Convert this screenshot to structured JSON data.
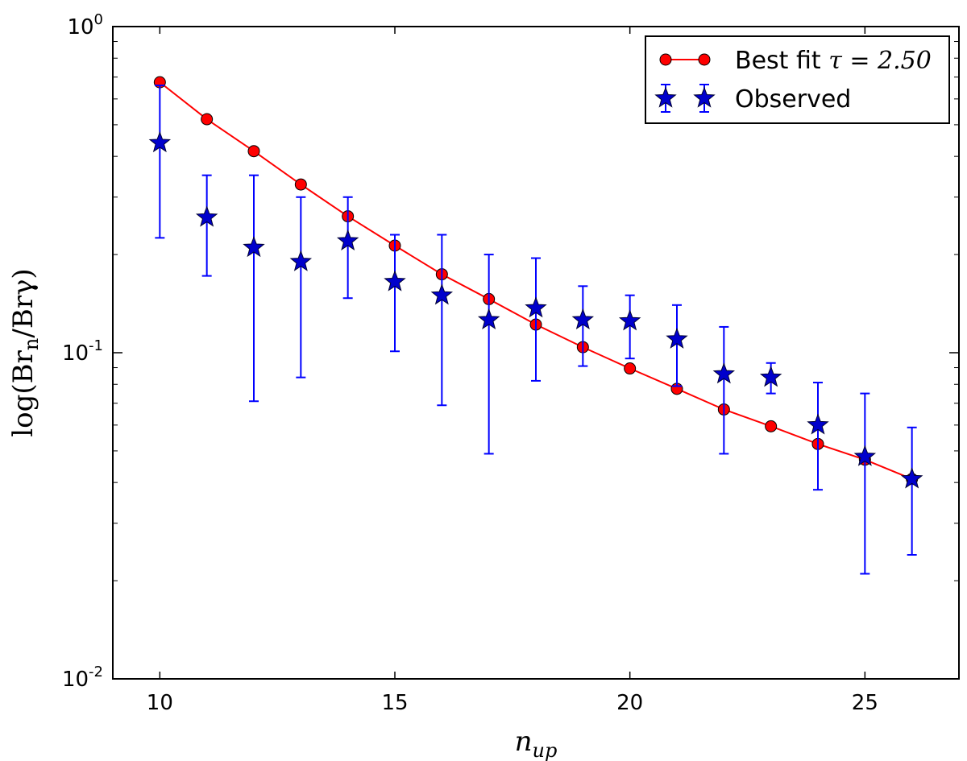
{
  "chart_data": {
    "type": "scatter",
    "xlabel": "n_up",
    "ylabel": "log(Br_n/Brγ)",
    "xlim": [
      9,
      27
    ],
    "ylim": [
      0.01,
      1
    ],
    "yscale": "log",
    "x_ticks": [
      10,
      15,
      20,
      25
    ],
    "y_ticks": [
      {
        "value": 1,
        "base": "10",
        "exp": "0"
      },
      {
        "value": 0.1,
        "base": "10",
        "exp": "-1"
      },
      {
        "value": 0.01,
        "base": "10",
        "exp": "-2"
      }
    ],
    "legend_position": "top-right",
    "series": [
      {
        "name": "Best fit",
        "legend_math": "τ = 2.50",
        "kind": "line-marker",
        "color": "#ff0000",
        "marker_fill": "#ff0000",
        "x": [
          10,
          11,
          12,
          13,
          14,
          15,
          16,
          17,
          18,
          19,
          20,
          21,
          22,
          23,
          24,
          25,
          26
        ],
        "y": [
          0.675,
          0.52,
          0.415,
          0.328,
          0.262,
          0.213,
          0.174,
          0.146,
          0.122,
          0.104,
          0.0895,
          0.0775,
          0.067,
          0.0595,
          0.0525,
          0.047,
          0.041
        ]
      },
      {
        "name": "Observed",
        "kind": "errorbar",
        "color": "#0000ff",
        "marker_fill": "#0000cc",
        "x": [
          10,
          11,
          12,
          13,
          14,
          15,
          16,
          17,
          18,
          19,
          20,
          21,
          22,
          23,
          24,
          25,
          26
        ],
        "y": [
          0.44,
          0.26,
          0.21,
          0.19,
          0.22,
          0.165,
          0.15,
          0.126,
          0.137,
          0.126,
          0.125,
          0.11,
          0.086,
          0.084,
          0.06,
          0.048,
          0.041
        ],
        "y_low": [
          0.225,
          0.172,
          0.071,
          0.084,
          0.147,
          0.101,
          0.069,
          0.049,
          0.082,
          0.091,
          0.096,
          0.079,
          0.049,
          0.075,
          0.038,
          0.021,
          0.024
        ],
        "y_high": [
          0.66,
          0.35,
          0.35,
          0.3,
          0.3,
          0.23,
          0.23,
          0.2,
          0.195,
          0.16,
          0.15,
          0.14,
          0.12,
          0.093,
          0.081,
          0.075,
          0.059
        ]
      }
    ]
  }
}
